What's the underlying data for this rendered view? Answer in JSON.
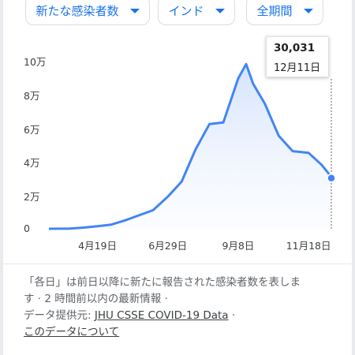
{
  "filters": {
    "metric": "新たな感染者数",
    "region": "インド",
    "period": "全期間"
  },
  "tooltip": {
    "value": "30,031",
    "date": "12月11日"
  },
  "footer": {
    "line1": "「各日」は前日以降に新たに報告された感染者数を表しま",
    "line2": "す · 2 時間前以内の最新情報 ·",
    "source_label": "データ提供元:",
    "source_link": "JHU CSSE COVID-19 Data",
    "source_sep": "·",
    "about_link": "このデータについて"
  },
  "colors": {
    "line": "#4285f4",
    "chip_text": "#1a73e8",
    "area_top": "#c6dafc"
  },
  "chart_data": {
    "type": "area",
    "title": "",
    "xlabel": "",
    "ylabel": "",
    "ylim": [
      0,
      100000
    ],
    "y_ticks": [
      {
        "value": 0,
        "label": "0"
      },
      {
        "value": 20000,
        "label": "2万"
      },
      {
        "value": 40000,
        "label": "4万"
      },
      {
        "value": 60000,
        "label": "6万"
      },
      {
        "value": 80000,
        "label": "8万"
      },
      {
        "value": 100000,
        "label": "10万"
      }
    ],
    "x_range": [
      "2020-03-01",
      "2020-12-11"
    ],
    "x_ticks": [
      {
        "date": "2020-04-19",
        "label": "4月19日"
      },
      {
        "date": "2020-06-29",
        "label": "6月29日"
      },
      {
        "date": "2020-09-08",
        "label": "9月8日"
      },
      {
        "date": "2020-11-18",
        "label": "11月18日"
      }
    ],
    "grid": false,
    "series": [
      {
        "points": [
          [
            "2020-03-01",
            0
          ],
          [
            "2020-03-22",
            100
          ],
          [
            "2020-04-05",
            700
          ],
          [
            "2020-04-19",
            1500
          ],
          [
            "2020-05-03",
            2500
          ],
          [
            "2020-05-17",
            5000
          ],
          [
            "2020-05-31",
            8000
          ],
          [
            "2020-06-14",
            11000
          ],
          [
            "2020-06-29",
            19000
          ],
          [
            "2020-07-13",
            28000
          ],
          [
            "2020-07-27",
            47000
          ],
          [
            "2020-08-10",
            62000
          ],
          [
            "2020-08-24",
            63000
          ],
          [
            "2020-09-08",
            89000
          ],
          [
            "2020-09-16",
            97500
          ],
          [
            "2020-09-23",
            86000
          ],
          [
            "2020-10-05",
            74000
          ],
          [
            "2020-10-19",
            55000
          ],
          [
            "2020-11-02",
            46000
          ],
          [
            "2020-11-18",
            45000
          ],
          [
            "2020-12-01",
            38000
          ],
          [
            "2020-12-08",
            33000
          ],
          [
            "2020-12-11",
            30031
          ]
        ]
      }
    ]
  }
}
